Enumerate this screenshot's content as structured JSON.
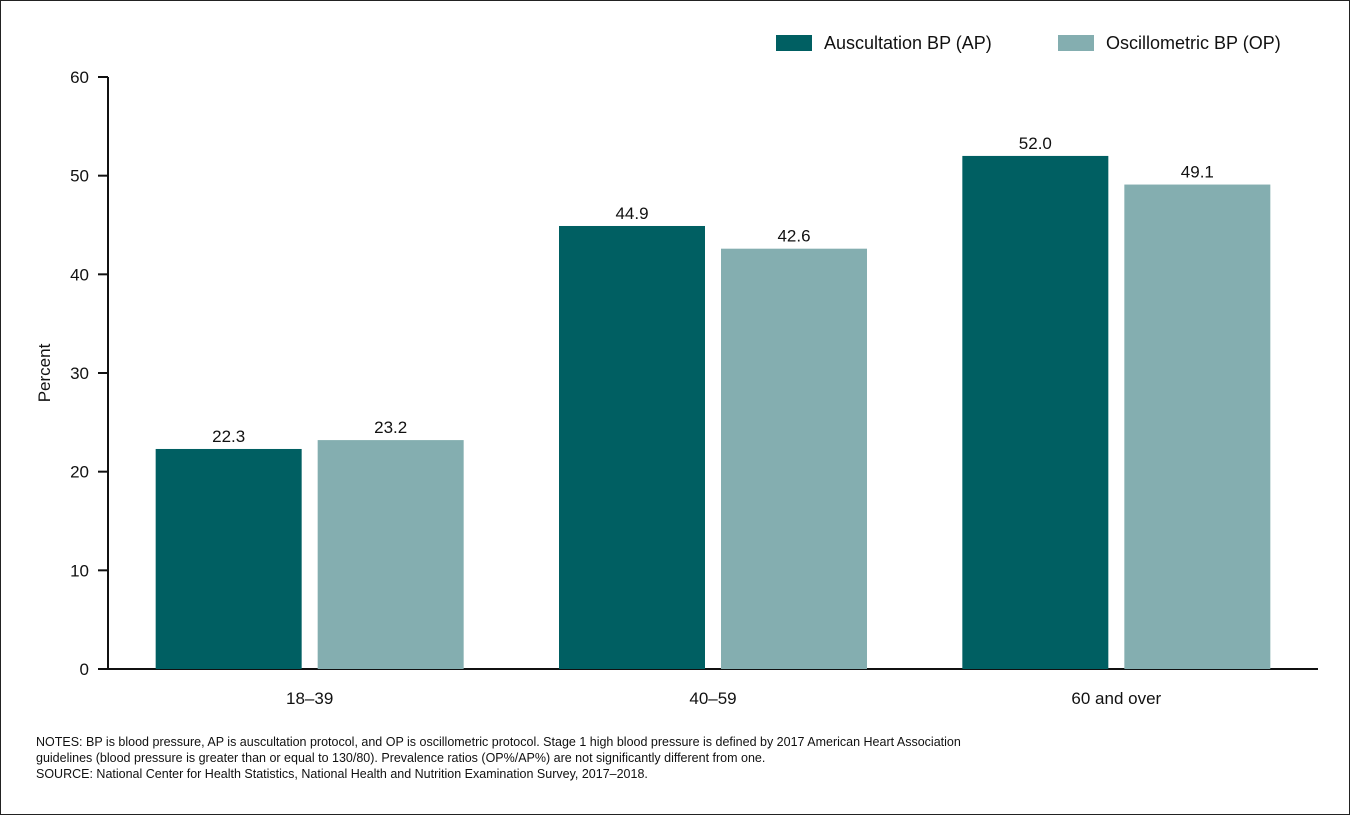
{
  "chart_data": {
    "type": "bar",
    "ylabel": "Percent",
    "ylim": [
      0,
      60
    ],
    "yticks": [
      0,
      10,
      20,
      30,
      40,
      50,
      60
    ],
    "categories": [
      "18–39",
      "40–59",
      "60 and over"
    ],
    "series": [
      {
        "name": "Auscultation BP (AP)",
        "color": "#005f62",
        "values": [
          22.3,
          44.9,
          52.0
        ],
        "labels": [
          "22.3",
          "44.9",
          "52.0"
        ]
      },
      {
        "name": "Oscillometric BP (OP)",
        "color": "#84aeb0",
        "values": [
          23.2,
          42.6,
          49.1
        ],
        "labels": [
          "23.2",
          "42.6",
          "49.1"
        ]
      }
    ],
    "legend": "top-right",
    "grid": false
  },
  "notes": {
    "line1": "NOTES: BP is blood pressure, AP is auscultation protocol, and OP is oscillometric protocol. Stage 1 high blood pressure is defined by 2017 American Heart Association",
    "line2": "guidelines (blood pressure is greater than or equal to 130/80). Prevalence ratios (OP%/AP%) are not significantly different from one.",
    "source": "SOURCE: National Center for Health Statistics, National Health and Nutrition Examination Survey, 2017–2018."
  }
}
